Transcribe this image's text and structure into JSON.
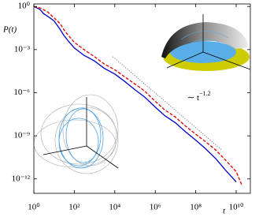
{
  "chart_data": {
    "type": "line",
    "y_label": "P(t)",
    "x_label": "t",
    "log_x": true,
    "log_y": true,
    "xlim": [
      1,
      50000000000
    ],
    "ylim": [
      1e-13,
      1.5
    ],
    "xticks": [
      {
        "value": 1,
        "label": "10⁰"
      },
      {
        "value": 100,
        "label": "10²"
      },
      {
        "value": 10000,
        "label": "10⁴"
      },
      {
        "value": 1000000,
        "label": "10⁶"
      },
      {
        "value": 100000000,
        "label": "10⁸"
      },
      {
        "value": 10000000000,
        "label": "10¹⁰"
      }
    ],
    "yticks": [
      {
        "value": 1,
        "label": "10⁰"
      },
      {
        "value": 0.001,
        "label": "10⁻³"
      },
      {
        "value": 1e-06,
        "label": "10⁻⁶"
      },
      {
        "value": 1e-09,
        "label": "10⁻⁹"
      },
      {
        "value": 1e-12,
        "label": "10⁻¹²"
      }
    ],
    "x": [
      1,
      2,
      3,
      5,
      10,
      20,
      30,
      50,
      100,
      300,
      1000,
      3000,
      10000,
      30000,
      100000,
      300000,
      1000000,
      3000000,
      10000000,
      30000000,
      100000000,
      300000000,
      1000000000,
      3000000000,
      10000000000,
      20000000000
    ],
    "series": [
      {
        "color": "#0000cc",
        "dash": false,
        "values": [
          1,
          0.63,
          0.32,
          0.2,
          0.1,
          0.025,
          0.01,
          0.004,
          0.0013,
          0.0004,
          0.00016,
          5e-05,
          2e-05,
          6.3e-06,
          1.6e-06,
          5e-07,
          1e-07,
          2.5e-08,
          8e-09,
          2e-09,
          5e-10,
          1.3e-10,
          2.5e-11,
          4e-12,
          6.3e-13,
          null
        ]
      },
      {
        "color": "#dd0000",
        "dash": true,
        "values": [
          1,
          0.8,
          0.6,
          0.4,
          0.16,
          0.063,
          0.025,
          0.01,
          0.0032,
          0.001,
          0.00032,
          0.0001,
          4e-05,
          1.3e-05,
          4e-06,
          1.3e-06,
          2.5e-07,
          6.3e-08,
          2e-08,
          5e-09,
          1.3e-09,
          4e-10,
          1e-10,
          2e-11,
          3.2e-12,
          3.2e-13
        ]
      }
    ],
    "reference": {
      "x": [
        8000,
        2000000000
      ],
      "values": [
        0.00032,
        1e-10
      ],
      "color": "#555555"
    },
    "annotation": {
      "text": "∼ t",
      "exponent": "−1.2"
    }
  }
}
